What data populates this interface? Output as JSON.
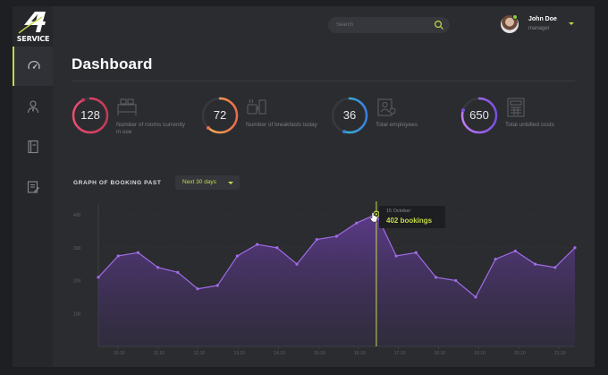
{
  "brand": {
    "logo_text": "SERVICE"
  },
  "nav": [
    {
      "name": "dashboard",
      "icon": "speedometer-icon",
      "active": true
    },
    {
      "name": "employees",
      "icon": "person-icon",
      "active": false
    },
    {
      "name": "book",
      "icon": "book-icon",
      "active": false
    },
    {
      "name": "documents",
      "icon": "document-icon",
      "active": false
    }
  ],
  "search": {
    "placeholder": "Search",
    "icon": "search-icon"
  },
  "user": {
    "name": "John Doe",
    "role": "manager"
  },
  "page": {
    "title": "Dashboard"
  },
  "stats": [
    {
      "value": "128",
      "label": "Number of rooms currently in use",
      "fraction": 0.93,
      "color_start": "#ee4c72",
      "color_end": "#c43a57",
      "icon": "bed-icon"
    },
    {
      "value": "72",
      "label": "Number of breakfasts today",
      "fraction": 0.62,
      "color_start": "#f3c25b",
      "color_end": "#ee6b49",
      "icon": "breakfast-icon"
    },
    {
      "value": "36",
      "label": "Total employees",
      "fraction": 0.55,
      "color_start": "#2fd5c3",
      "color_end": "#3b7fe0",
      "icon": "employees-icon"
    },
    {
      "value": "650",
      "label": "Total unbilled costs",
      "fraction": 0.8,
      "color_start": "#c27cf0",
      "color_end": "#7a4ee0",
      "icon": "calculator-icon"
    }
  ],
  "graph": {
    "title": "GRAPH OF BOOKING PAST",
    "range_label": "Next 30 days",
    "tooltip": {
      "date": "15 October",
      "value": "402 bookings"
    }
  },
  "chart_data": {
    "type": "area",
    "title": "GRAPH OF BOOKING PAST",
    "y_ticks": [
      "400",
      "300",
      "200",
      "100"
    ],
    "ylim": [
      0,
      430
    ],
    "x_ticks": [
      "10.10",
      "11.10",
      "12.10",
      "13.10",
      "14.10",
      "15.10",
      "16.10",
      "17.10",
      "18.10",
      "19.10",
      "20.10",
      "21.10"
    ],
    "series": [
      {
        "values": [
          210,
          275,
          285,
          240,
          225,
          175,
          185,
          275,
          310,
          300,
          250,
          325,
          335,
          375,
          402,
          275,
          285,
          210,
          200,
          150,
          265,
          290,
          250,
          240,
          300
        ]
      }
    ],
    "highlight_index": 14,
    "line_color": "#a06ce6",
    "marker_color": "#c6d94a",
    "grid": true
  }
}
